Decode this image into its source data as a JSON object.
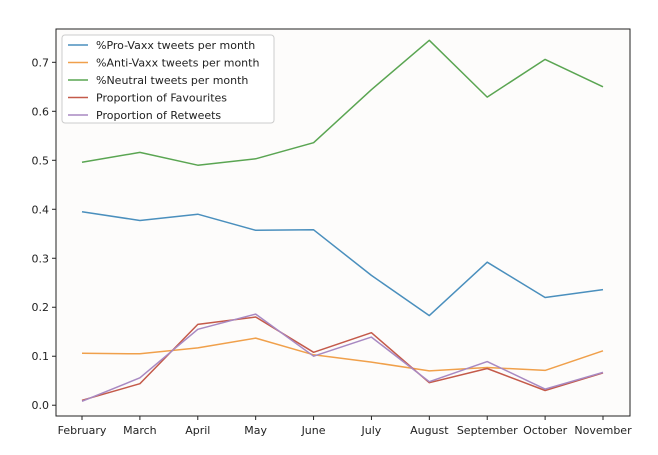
{
  "chart_data": {
    "type": "line",
    "categories": [
      "February",
      "March",
      "April",
      "May",
      "June",
      "July",
      "August",
      "September",
      "October",
      "November"
    ],
    "ylim": [
      -0.022,
      0.768
    ],
    "y_ticks": [
      0.0,
      0.1,
      0.2,
      0.3,
      0.4,
      0.5,
      0.6,
      0.7
    ],
    "y_tick_labels": [
      "0.0",
      "0.1",
      "0.2",
      "0.3",
      "0.4",
      "0.5",
      "0.6",
      "0.7"
    ],
    "grid": false,
    "legend_placement": "top-left",
    "series": [
      {
        "name": "%Pro-Vaxx tweets per month",
        "color": "#4a8fbd",
        "values": [
          0.395,
          0.377,
          0.39,
          0.357,
          0.358,
          0.265,
          0.183,
          0.292,
          0.22,
          0.236
        ]
      },
      {
        "name": "%Anti-Vaxx tweets per month",
        "color": "#f0a04b",
        "values": [
          0.106,
          0.105,
          0.117,
          0.137,
          0.103,
          0.088,
          0.07,
          0.077,
          0.071,
          0.111
        ]
      },
      {
        "name": "%Neutral tweets per month",
        "color": "#5aa552",
        "values": [
          0.496,
          0.516,
          0.49,
          0.503,
          0.536,
          0.644,
          0.745,
          0.629,
          0.706,
          0.65
        ]
      },
      {
        "name": "Proportion of Favourites",
        "color": "#c45a4a",
        "values": [
          0.01,
          0.044,
          0.165,
          0.18,
          0.108,
          0.148,
          0.046,
          0.075,
          0.03,
          0.066
        ]
      },
      {
        "name": "Proportion of Retweets",
        "color": "#a889c2",
        "values": [
          0.008,
          0.056,
          0.155,
          0.186,
          0.1,
          0.139,
          0.048,
          0.089,
          0.033,
          0.067
        ]
      }
    ]
  }
}
